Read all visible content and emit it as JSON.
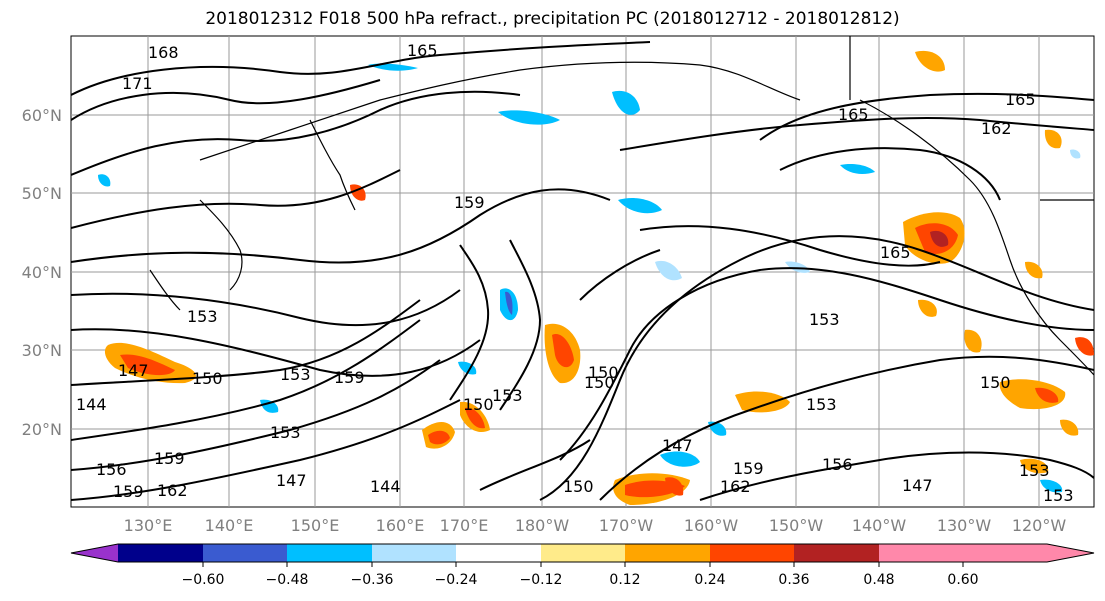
{
  "title": "2018012312 F018 500 hPa refract., precipitation PC (2018012712 - 2018012812)",
  "lat_labels": [
    "60°N",
    "50°N",
    "40°N",
    "30°N",
    "20°N"
  ],
  "lon_labels": [
    "130°E",
    "140°E",
    "150°E",
    "160°E",
    "170°E",
    "180°W",
    "170°W",
    "160°W",
    "150°W",
    "140°W",
    "130°W",
    "120°W"
  ],
  "colorbar": {
    "ticks": [
      "−0.60",
      "−0.48",
      "−0.36",
      "−0.24",
      "−0.12",
      "0.12",
      "0.24",
      "0.36",
      "0.48",
      "0.60"
    ],
    "colors": [
      "#9932CC",
      "#00008B",
      "#3A5BD0",
      "#00BFFF",
      "#B0E2FF",
      "#FFFFFF",
      "#FFEB8A",
      "#FFA500",
      "#FF4500",
      "#B22222",
      "#FF88AA"
    ]
  },
  "contour_labels": [
    {
      "text": "168"
    },
    {
      "text": "171"
    },
    {
      "text": "165"
    },
    {
      "text": "165"
    },
    {
      "text": "165"
    },
    {
      "text": "162"
    },
    {
      "text": "159"
    },
    {
      "text": "165"
    },
    {
      "text": "153"
    },
    {
      "text": "153"
    },
    {
      "text": "150"
    },
    {
      "text": "147"
    },
    {
      "text": "153"
    },
    {
      "text": "159"
    },
    {
      "text": "153"
    },
    {
      "text": "150"
    },
    {
      "text": "150"
    },
    {
      "text": "153"
    },
    {
      "text": "150"
    },
    {
      "text": "147"
    },
    {
      "text": "153"
    },
    {
      "text": "144"
    },
    {
      "text": "156"
    },
    {
      "text": "159"
    },
    {
      "text": "159"
    },
    {
      "text": "162"
    },
    {
      "text": "147"
    },
    {
      "text": "144"
    },
    {
      "text": "150"
    },
    {
      "text": "159"
    },
    {
      "text": "162"
    },
    {
      "text": "156"
    },
    {
      "text": "147"
    },
    {
      "text": "153"
    },
    {
      "text": "153"
    },
    {
      "text": "150"
    }
  ]
}
